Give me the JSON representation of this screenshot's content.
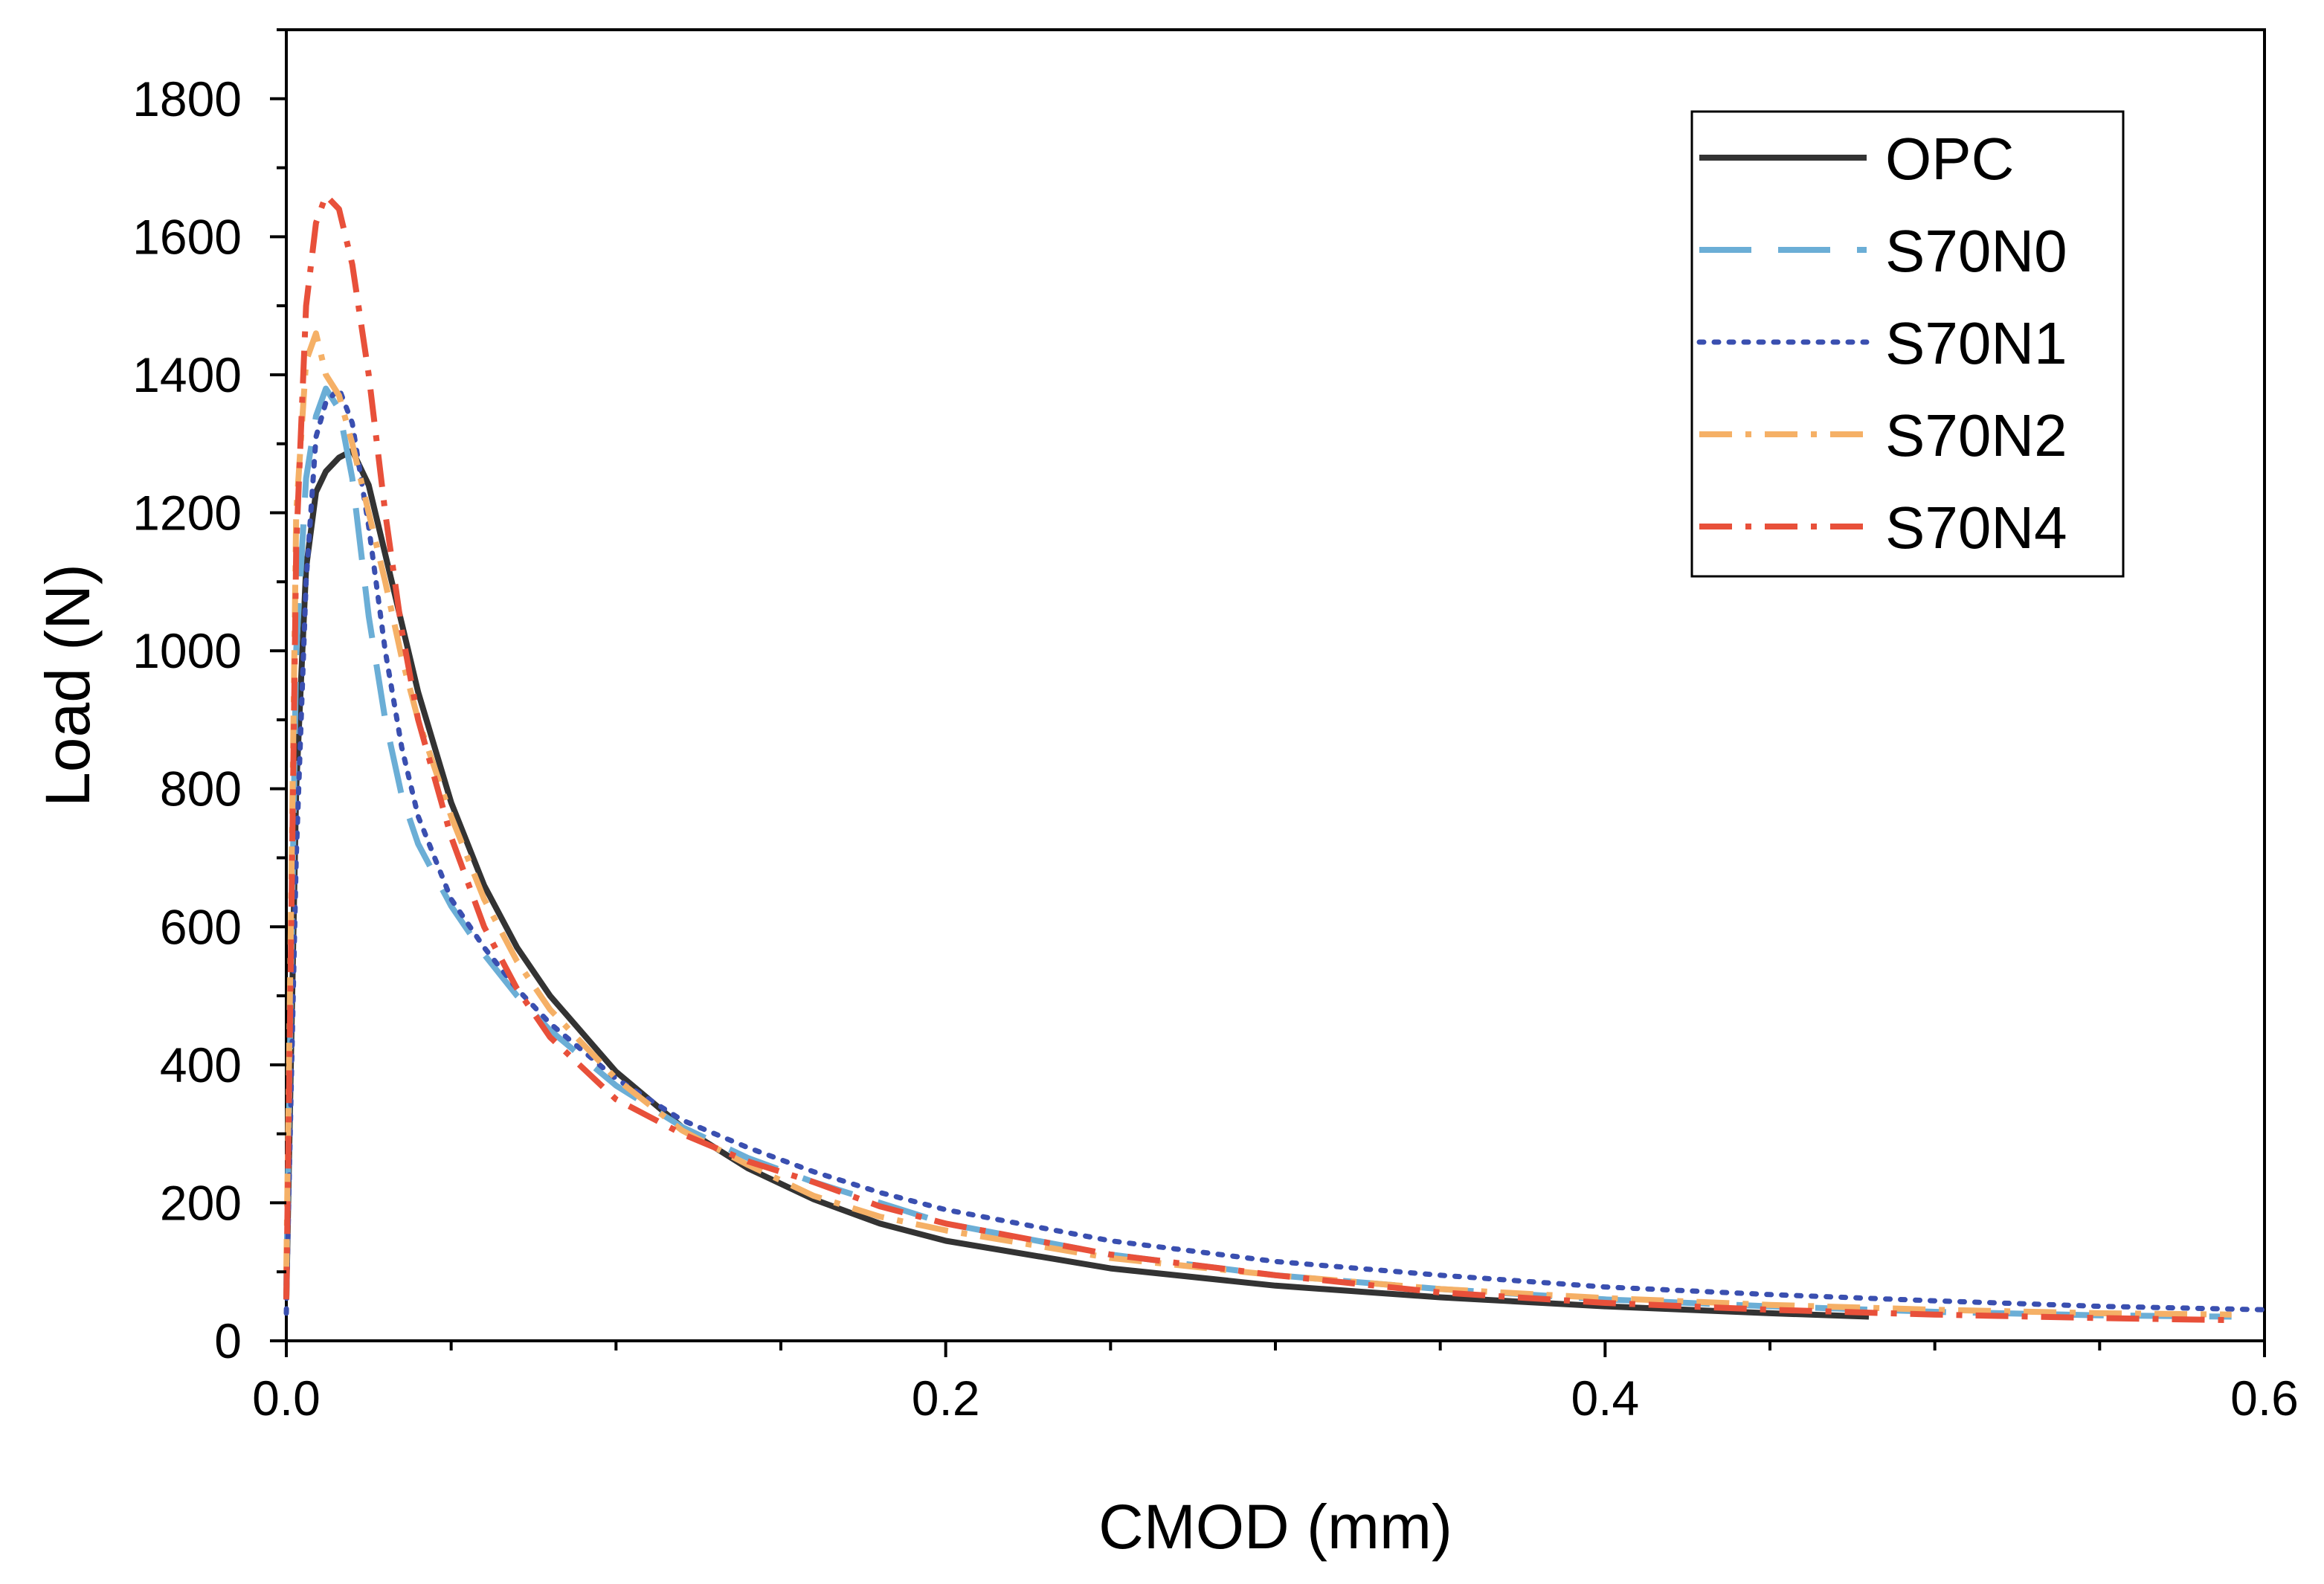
{
  "chart_data": {
    "type": "line",
    "title": "",
    "xlabel": "CMOD (mm)",
    "ylabel": "Load (N)",
    "xlim": [
      0,
      0.6
    ],
    "ylim": [
      0,
      1900
    ],
    "x_ticks": [
      0,
      0.2,
      0.4,
      0.6
    ],
    "x_tick_labels": [
      "0.0",
      "0.2",
      "0.4",
      "0.6"
    ],
    "y_ticks": [
      0,
      200,
      400,
      600,
      800,
      1000,
      1200,
      1400,
      1600,
      1800
    ],
    "y_tick_labels": [
      "0",
      "200",
      "400",
      "600",
      "800",
      "1000",
      "1200",
      "1400",
      "1600",
      "1800"
    ],
    "grid": false,
    "legend_position": "top-right",
    "series": [
      {
        "name": "OPC",
        "color": "#333333",
        "style": "solid",
        "x": [
          0,
          0.003,
          0.006,
          0.009,
          0.012,
          0.016,
          0.02,
          0.025,
          0.03,
          0.035,
          0.04,
          0.05,
          0.06,
          0.07,
          0.08,
          0.1,
          0.12,
          0.14,
          0.16,
          0.18,
          0.2,
          0.25,
          0.3,
          0.35,
          0.4,
          0.45,
          0.48
        ],
        "y": [
          60,
          800,
          1120,
          1230,
          1260,
          1280,
          1290,
          1240,
          1140,
          1040,
          940,
          780,
          660,
          570,
          500,
          390,
          310,
          250,
          205,
          170,
          145,
          105,
          80,
          63,
          50,
          40,
          35
        ]
      },
      {
        "name": "S70N0",
        "color": "#6BAED6",
        "style": "dashed",
        "x": [
          0,
          0.003,
          0.006,
          0.009,
          0.012,
          0.016,
          0.02,
          0.025,
          0.03,
          0.035,
          0.04,
          0.05,
          0.06,
          0.07,
          0.08,
          0.1,
          0.12,
          0.14,
          0.16,
          0.18,
          0.2,
          0.25,
          0.3,
          0.35,
          0.4,
          0.45,
          0.5,
          0.55,
          0.59
        ],
        "y": [
          80,
          1000,
          1250,
          1340,
          1380,
          1350,
          1250,
          1050,
          900,
          790,
          720,
          630,
          560,
          500,
          450,
          370,
          310,
          265,
          230,
          200,
          170,
          125,
          95,
          75,
          60,
          50,
          42,
          37,
          35
        ]
      },
      {
        "name": "S70N1",
        "color": "#3A4FB0",
        "style": "dotted",
        "x": [
          0,
          0.003,
          0.006,
          0.009,
          0.012,
          0.016,
          0.02,
          0.025,
          0.03,
          0.035,
          0.04,
          0.05,
          0.06,
          0.07,
          0.08,
          0.1,
          0.12,
          0.14,
          0.16,
          0.18,
          0.2,
          0.25,
          0.3,
          0.35,
          0.4,
          0.45,
          0.5,
          0.55,
          0.6
        ],
        "y": [
          40,
          700,
          1100,
          1310,
          1360,
          1380,
          1330,
          1180,
          1000,
          860,
          760,
          640,
          570,
          510,
          460,
          380,
          320,
          280,
          245,
          215,
          190,
          145,
          115,
          95,
          78,
          67,
          58,
          50,
          45
        ]
      },
      {
        "name": "S70N2",
        "color": "#F5B066",
        "style": "dash-dot",
        "x": [
          0,
          0.003,
          0.006,
          0.009,
          0.012,
          0.016,
          0.02,
          0.025,
          0.03,
          0.035,
          0.04,
          0.05,
          0.06,
          0.07,
          0.08,
          0.1,
          0.12,
          0.14,
          0.16,
          0.18,
          0.2,
          0.25,
          0.3,
          0.35,
          0.4,
          0.45,
          0.5,
          0.55,
          0.59
        ],
        "y": [
          100,
          1200,
          1420,
          1460,
          1400,
          1370,
          1300,
          1200,
          1100,
          990,
          900,
          760,
          640,
          550,
          480,
          380,
          305,
          255,
          210,
          180,
          160,
          120,
          95,
          75,
          62,
          52,
          45,
          40,
          38
        ]
      },
      {
        "name": "S70N4",
        "color": "#E8503A",
        "style": "dash-dot",
        "x": [
          0,
          0.003,
          0.006,
          0.009,
          0.012,
          0.016,
          0.02,
          0.025,
          0.03,
          0.035,
          0.04,
          0.05,
          0.06,
          0.07,
          0.08,
          0.1,
          0.12,
          0.14,
          0.16,
          0.18,
          0.2,
          0.25,
          0.3,
          0.35,
          0.4,
          0.45,
          0.5,
          0.55,
          0.59
        ],
        "y": [
          60,
          1150,
          1500,
          1620,
          1660,
          1640,
          1560,
          1400,
          1200,
          1030,
          900,
          730,
          600,
          510,
          440,
          350,
          300,
          260,
          230,
          195,
          170,
          125,
          95,
          70,
          55,
          45,
          38,
          33,
          30
        ]
      }
    ]
  }
}
